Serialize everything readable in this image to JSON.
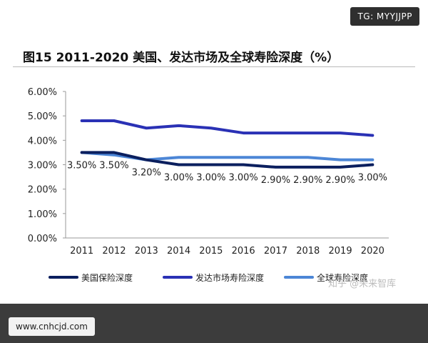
{
  "badges": {
    "tg": "TG: MYYJJPP",
    "url": "www.cnhcjd.com",
    "watermark": "知乎 @未来智库"
  },
  "chart_data": {
    "type": "line",
    "title": "图15 2011-2020 美国、发达市场及全球寿险深度（%）",
    "xlabel": "",
    "ylabel": "",
    "x": [
      "2011",
      "2012",
      "2013",
      "2014",
      "2015",
      "2016",
      "2017",
      "2018",
      "2019",
      "2020"
    ],
    "y_ticks": [
      "0.00%",
      "1.00%",
      "2.00%",
      "3.00%",
      "4.00%",
      "5.00%",
      "6.00%"
    ],
    "ylim": [
      0,
      6
    ],
    "grid": false,
    "legend_position": "bottom",
    "series": [
      {
        "name": "美国保险深度",
        "color": "#0b1f5e",
        "values": [
          3.5,
          3.5,
          3.2,
          3.0,
          3.0,
          3.0,
          2.9,
          2.9,
          2.9,
          3.0
        ],
        "labels": [
          "3.50%",
          "3.50%",
          "3.20%",
          "3.00%",
          "3.00%",
          "3.00%",
          "2.90%",
          "2.90%",
          "2.90%",
          "3.00%"
        ]
      },
      {
        "name": "发达市场寿险深度",
        "color": "#2a31b5",
        "values": [
          4.8,
          4.8,
          4.5,
          4.6,
          4.5,
          4.3,
          4.3,
          4.3,
          4.3,
          4.2
        ],
        "labels": []
      },
      {
        "name": "全球寿险深度",
        "color": "#4c86d6",
        "values": [
          3.5,
          3.4,
          3.2,
          3.3,
          3.3,
          3.3,
          3.3,
          3.3,
          3.2,
          3.2
        ],
        "labels": []
      }
    ]
  }
}
